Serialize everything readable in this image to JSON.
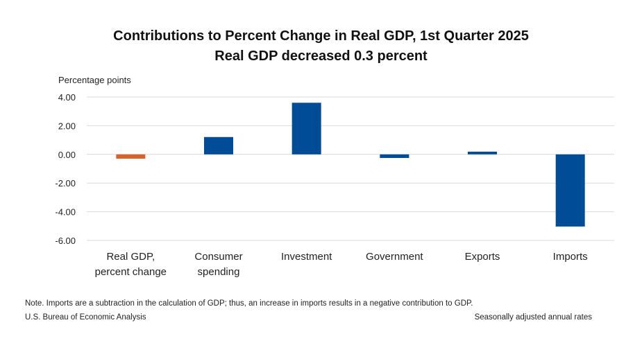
{
  "chart_data": {
    "type": "bar",
    "title": "Contributions to Percent Change in Real GDP, 1st Quarter 2025",
    "subtitle": "Real GDP decreased 0.3 percent",
    "ylabel": "Percentage points",
    "xlabel": "",
    "ylim": [
      -6,
      4
    ],
    "yticks": [
      4,
      2,
      0,
      -2,
      -4,
      -6
    ],
    "ytick_labels": [
      "4.00",
      "2.00",
      "0.00",
      "-2.00",
      "-4.00",
      "-6.00"
    ],
    "grid": true,
    "categories": [
      [
        "Real GDP,",
        "percent change"
      ],
      [
        "Consumer",
        "spending"
      ],
      [
        "Investment"
      ],
      [
        "Government"
      ],
      [
        "Exports"
      ],
      [
        "Imports"
      ]
    ],
    "values": [
      -0.3,
      1.21,
      3.6,
      -0.25,
      0.19,
      -5.03
    ],
    "bar_colors": [
      "#D9622B",
      "#004C97",
      "#004C97",
      "#004C97",
      "#004C97",
      "#004C97"
    ]
  },
  "footer": {
    "note": "Note. Imports are a subtraction in the calculation of GDP; thus, an increase in imports results in a negative contribution to GDP.",
    "source": "U.S. Bureau of Economic Analysis",
    "rates": "Seasonally adjusted annual rates"
  }
}
